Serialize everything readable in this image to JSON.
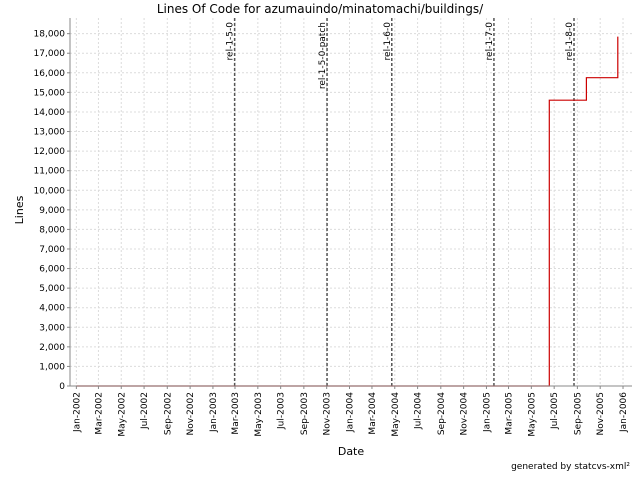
{
  "chart_data": {
    "type": "line",
    "title": "Lines Of Code for azumauindo/minatomachi/buildings/",
    "xlabel": "Date",
    "ylabel": "Lines",
    "ylim": [
      0,
      18800
    ],
    "xlim": [
      "2001-12-15",
      "2006-01-25"
    ],
    "yticks": [
      0,
      1000,
      2000,
      3000,
      4000,
      5000,
      6000,
      7000,
      8000,
      9000,
      10000,
      11000,
      12000,
      13000,
      14000,
      15000,
      16000,
      17000,
      18000
    ],
    "ytick_labels": [
      "0",
      "1,000",
      "2,000",
      "3,000",
      "4,000",
      "5,000",
      "6,000",
      "7,000",
      "8,000",
      "9,000",
      "10,000",
      "11,000",
      "12,000",
      "13,000",
      "14,000",
      "15,000",
      "16,000",
      "17,000",
      "18,000"
    ],
    "xticks": [
      "2002-01-01",
      "2002-03-01",
      "2002-05-01",
      "2002-07-01",
      "2002-09-01",
      "2002-11-01",
      "2003-01-01",
      "2003-03-01",
      "2003-05-01",
      "2003-07-01",
      "2003-09-01",
      "2003-11-01",
      "2004-01-01",
      "2004-03-01",
      "2004-05-01",
      "2004-07-01",
      "2004-09-01",
      "2004-11-01",
      "2005-01-01",
      "2005-03-01",
      "2005-05-01",
      "2005-07-01",
      "2005-09-01",
      "2005-11-01",
      "2006-01-01"
    ],
    "xtick_labels": [
      "Jan-2002",
      "Mar-2002",
      "May-2002",
      "Jul-2002",
      "Sep-2002",
      "Nov-2002",
      "Jan-2003",
      "Mar-2003",
      "May-2003",
      "Jul-2003",
      "Sep-2003",
      "Nov-2003",
      "Jan-2004",
      "Mar-2004",
      "May-2004",
      "Jul-2004",
      "Sep-2004",
      "Nov-2004",
      "Jan-2005",
      "Mar-2005",
      "May-2005",
      "Jul-2005",
      "Sep-2005",
      "Nov-2005",
      "Jan-2006"
    ],
    "grid": true,
    "series": [
      {
        "color": "#cc0000",
        "step": true,
        "points": [
          {
            "x": "2002-01-01",
            "y": 0
          },
          {
            "x": "2005-06-18",
            "y": 0
          },
          {
            "x": "2005-06-18",
            "y": 14600
          },
          {
            "x": "2005-09-25",
            "y": 14600
          },
          {
            "x": "2005-09-25",
            "y": 15750
          },
          {
            "x": "2005-12-18",
            "y": 15750
          },
          {
            "x": "2005-12-18",
            "y": 17850
          }
        ]
      }
    ],
    "markers": [
      {
        "label": "rel-1-5-0",
        "date": "2003-02-28"
      },
      {
        "label": "rel-1-5-0-patch",
        "date": "2003-11-02"
      },
      {
        "label": "rel-1-6-0",
        "date": "2004-04-23"
      },
      {
        "label": "rel-1-7-0",
        "date": "2005-01-21"
      },
      {
        "label": "rel-1-8-0",
        "date": "2005-08-23"
      }
    ]
  },
  "footer": "generated by statcvs-xml²"
}
